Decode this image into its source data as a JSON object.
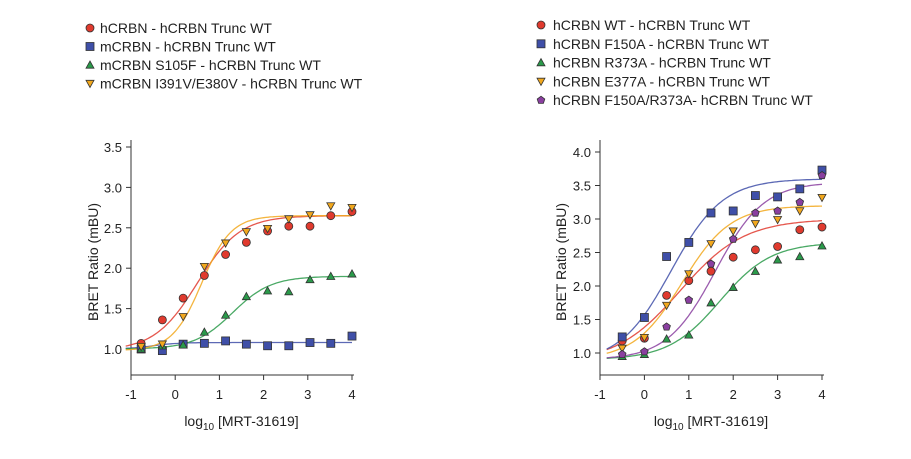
{
  "chart_data": [
    {
      "type": "scatter",
      "xlabel": "log10 [MRT-31619]",
      "xlabel_main": "log",
      "xlabel_sub": "10",
      "xlabel_rest": " [MRT-31619]",
      "ylabel": "BRET Ratio (mBU)",
      "xlim": [
        -1,
        4
      ],
      "ylim": [
        1.0,
        3.5
      ],
      "xticks": [
        -1,
        0,
        1,
        2,
        3,
        4
      ],
      "yticks": [
        1.0,
        1.5,
        2.0,
        2.5,
        3.0,
        3.5
      ],
      "ytick_labels": [
        "1.0",
        "1.5",
        "2.0",
        "2.5",
        "3.0",
        "3.5"
      ],
      "legend_position": "top-left",
      "x": [
        -0.77,
        -0.29,
        0.18,
        0.66,
        1.14,
        1.61,
        2.09,
        2.57,
        3.05,
        3.52,
        4.0
      ],
      "series": [
        {
          "name": "hCRBN - hCRBN Trunc WT",
          "marker": "circle",
          "color": "#e03a2e",
          "y": [
            1.07,
            1.36,
            1.63,
            1.91,
            2.17,
            2.32,
            2.46,
            2.52,
            2.52,
            2.65,
            2.7
          ],
          "fit": {
            "bottom": 0.98,
            "top": 2.65,
            "logEC50": 0.5,
            "hill": 0.9
          }
        },
        {
          "name": "mCRBN - hCRBN Trunc WT",
          "marker": "square",
          "color": "#3f4fa8",
          "y": [
            1.0,
            0.98,
            1.06,
            1.07,
            1.1,
            1.06,
            1.04,
            1.04,
            1.08,
            1.07,
            1.16
          ],
          "fit": {
            "bottom": 1.0,
            "top": 1.08,
            "logEC50": -0.5,
            "hill": 1.5
          }
        },
        {
          "name": "mCRBN S105F - hCRBN Trunc WT",
          "marker": "triangle-up",
          "color": "#2a9a4a",
          "y": [
            1.0,
            1.04,
            1.05,
            1.21,
            1.42,
            1.65,
            1.72,
            1.71,
            1.86,
            1.9,
            1.93
          ],
          "fit": {
            "bottom": 1.0,
            "top": 1.9,
            "logEC50": 1.3,
            "hill": 1.0
          }
        },
        {
          "name": "mCRBN I391V/E380V - hCRBN Trunc WT",
          "marker": "triangle-down",
          "color": "#f2a81d",
          "y": [
            1.03,
            1.06,
            1.4,
            2.02,
            2.31,
            2.45,
            2.49,
            2.61,
            2.66,
            2.77,
            2.75
          ],
          "fit": {
            "bottom": 0.98,
            "top": 2.65,
            "logEC50": 0.6,
            "hill": 1.3
          }
        }
      ]
    },
    {
      "type": "scatter",
      "xlabel": "log10 [MRT-31619]",
      "xlabel_main": "log",
      "xlabel_sub": "10",
      "xlabel_rest": " [MRT-31619]",
      "ylabel": "BRET Ratio (mBU)",
      "xlim": [
        -1,
        4
      ],
      "ylim": [
        1.0,
        4.0
      ],
      "xticks": [
        -1,
        0,
        1,
        2,
        3,
        4
      ],
      "yticks": [
        1.0,
        1.5,
        2.0,
        2.5,
        3.0,
        3.5,
        4.0
      ],
      "ytick_labels": [
        "1.0",
        "1.5",
        "2.0",
        "2.5",
        "3.0",
        "3.5",
        "4.0"
      ],
      "legend_position": "top-left",
      "x": [
        -0.5,
        0,
        0.5,
        1.0,
        1.5,
        2.0,
        2.5,
        3.0,
        3.5,
        4.0
      ],
      "series": [
        {
          "name": "hCRBN WT - hCRBN Trunc WT",
          "marker": "circle",
          "color": "#e03a2e",
          "y": [
            1.18,
            1.22,
            1.86,
            2.08,
            2.22,
            2.43,
            2.54,
            2.59,
            2.84,
            2.88
          ],
          "fit": {
            "bottom": 0.85,
            "top": 3.0,
            "logEC50": 0.8,
            "hill": 0.6
          }
        },
        {
          "name": "hCRBN F150A - hCRBN Trunc WT",
          "marker": "square",
          "color": "#3f4fa8",
          "y": [
            1.24,
            1.53,
            2.44,
            2.65,
            3.09,
            3.12,
            3.35,
            3.33,
            3.45,
            3.73
          ],
          "fit": {
            "bottom": 0.85,
            "top": 3.6,
            "logEC50": 0.6,
            "hill": 0.75
          }
        },
        {
          "name": "hCRBN R373A - hCRBN Trunc WT",
          "marker": "triangle-up",
          "color": "#2a9a4a",
          "y": [
            0.95,
            0.98,
            1.21,
            1.27,
            1.75,
            1.98,
            2.22,
            2.39,
            2.44,
            2.6
          ],
          "fit": {
            "bottom": 0.9,
            "top": 2.65,
            "logEC50": 1.7,
            "hill": 0.75
          }
        },
        {
          "name": "hCRBN E377A - hCRBN Trunc WT",
          "marker": "triangle-down",
          "color": "#f2a81d",
          "y": [
            1.07,
            1.23,
            1.71,
            2.18,
            2.63,
            2.82,
            2.93,
            2.99,
            3.12,
            3.32
          ],
          "fit": {
            "bottom": 0.9,
            "top": 3.2,
            "logEC50": 0.85,
            "hill": 0.8
          }
        },
        {
          "name": "hCRBN F150A/R373A- hCRBN Trunc WT",
          "marker": "pentagon",
          "color": "#8a3fa0",
          "y": [
            0.98,
            1.02,
            1.39,
            1.79,
            2.33,
            2.7,
            3.09,
            3.12,
            3.25,
            3.65
          ],
          "fit": {
            "bottom": 0.9,
            "top": 3.55,
            "logEC50": 1.6,
            "hill": 0.8
          }
        }
      ]
    }
  ]
}
